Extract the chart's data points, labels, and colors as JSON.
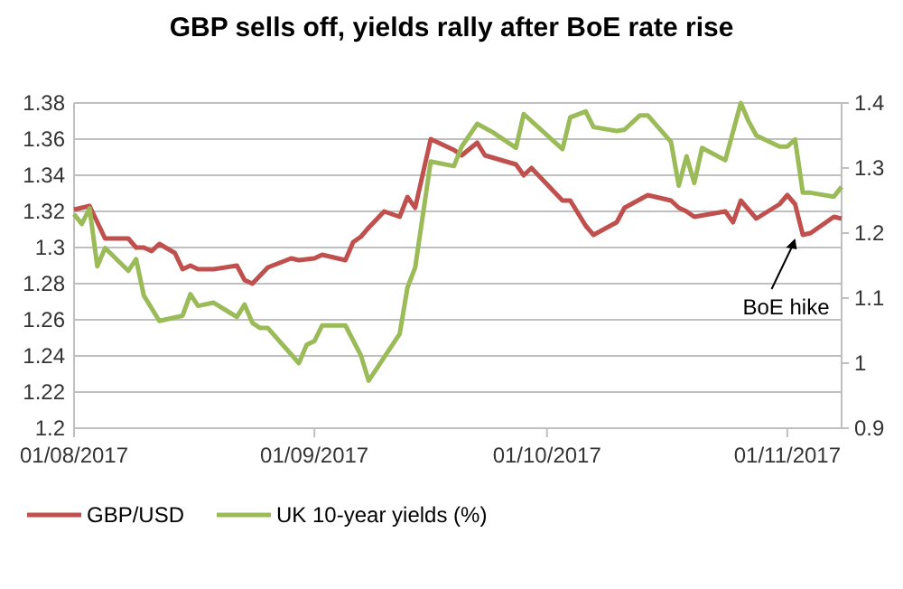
{
  "chart_data": {
    "type": "line",
    "title": "GBP sells off, yields rally after BoE rate rise",
    "xlim": [
      "2017-08-01",
      "2017-11-08"
    ],
    "xticks": [
      {
        "value": "2017-08-01",
        "label": "01/08/2017"
      },
      {
        "value": "2017-09-01",
        "label": "01/09/2017"
      },
      {
        "value": "2017-10-01",
        "label": "01/10/2017"
      },
      {
        "value": "2017-11-01",
        "label": "01/11/2017"
      }
    ],
    "ylim": [
      1.2,
      1.38
    ],
    "yticks": [
      1.2,
      1.22,
      1.24,
      1.26,
      1.28,
      1.3,
      1.32,
      1.34,
      1.36,
      1.38
    ],
    "y2lim": [
      0.9,
      1.4
    ],
    "y2ticks": [
      0.9,
      1,
      1.1,
      1.2,
      1.3,
      1.4
    ],
    "grid": "y",
    "legend": "bottom",
    "marker": "none",
    "line_style": "solid",
    "annotations": [
      {
        "text": "BoE hike",
        "x": "2017-11-02",
        "y": 1.307
      }
    ],
    "series": [
      {
        "name": "GBP/USD",
        "color": "#c0504d",
        "x": [
          "2017-08-01",
          "2017-08-03",
          "2017-08-05",
          "2017-08-08",
          "2017-08-09",
          "2017-08-10",
          "2017-08-11",
          "2017-08-12",
          "2017-08-14",
          "2017-08-15",
          "2017-08-16",
          "2017-08-17",
          "2017-08-19",
          "2017-08-22",
          "2017-08-23",
          "2017-08-24",
          "2017-08-26",
          "2017-08-29",
          "2017-08-30",
          "2017-09-01",
          "2017-09-02",
          "2017-09-05",
          "2017-09-06",
          "2017-09-07",
          "2017-09-08",
          "2017-09-10",
          "2017-09-12",
          "2017-09-13",
          "2017-09-14",
          "2017-09-16",
          "2017-09-19",
          "2017-09-20",
          "2017-09-22",
          "2017-09-23",
          "2017-09-27",
          "2017-09-28",
          "2017-09-29",
          "2017-10-03",
          "2017-10-04",
          "2017-10-06",
          "2017-10-07",
          "2017-10-10",
          "2017-10-11",
          "2017-10-14",
          "2017-10-17",
          "2017-10-18",
          "2017-10-19",
          "2017-10-20",
          "2017-10-24",
          "2017-10-25",
          "2017-10-26",
          "2017-10-28",
          "2017-10-31",
          "2017-11-01",
          "2017-11-02",
          "2017-11-03",
          "2017-11-04",
          "2017-11-07",
          "2017-11-08"
        ],
        "values": [
          1.321,
          1.323,
          1.305,
          1.305,
          1.3,
          1.3,
          1.298,
          1.302,
          1.297,
          1.288,
          1.29,
          1.288,
          1.288,
          1.29,
          1.282,
          1.28,
          1.289,
          1.294,
          1.293,
          1.294,
          1.296,
          1.293,
          1.303,
          1.306,
          1.311,
          1.32,
          1.317,
          1.328,
          1.322,
          1.36,
          1.354,
          1.351,
          1.358,
          1.351,
          1.346,
          1.34,
          1.344,
          1.326,
          1.326,
          1.312,
          1.307,
          1.314,
          1.322,
          1.329,
          1.326,
          1.322,
          1.32,
          1.317,
          1.32,
          1.314,
          1.326,
          1.316,
          1.324,
          1.329,
          1.324,
          1.307,
          1.308,
          1.317,
          1.316
        ]
      },
      {
        "name": "UK 10-year yields (%)",
        "color": "#9bbb59",
        "axis": "y2",
        "x": [
          "2017-08-01",
          "2017-08-02",
          "2017-08-03",
          "2017-08-04",
          "2017-08-05",
          "2017-08-08",
          "2017-08-09",
          "2017-08-10",
          "2017-08-12",
          "2017-08-15",
          "2017-08-16",
          "2017-08-17",
          "2017-08-19",
          "2017-08-22",
          "2017-08-23",
          "2017-08-24",
          "2017-08-25",
          "2017-08-26",
          "2017-08-30",
          "2017-08-31",
          "2017-09-01",
          "2017-09-02",
          "2017-09-05",
          "2017-09-07",
          "2017-09-08",
          "2017-09-12",
          "2017-09-13",
          "2017-09-14",
          "2017-09-16",
          "2017-09-19",
          "2017-09-20",
          "2017-09-22",
          "2017-09-24",
          "2017-09-27",
          "2017-09-28",
          "2017-10-03",
          "2017-10-04",
          "2017-10-06",
          "2017-10-07",
          "2017-10-10",
          "2017-10-11",
          "2017-10-13",
          "2017-10-14",
          "2017-10-17",
          "2017-10-18",
          "2017-10-19",
          "2017-10-20",
          "2017-10-21",
          "2017-10-24",
          "2017-10-26",
          "2017-10-27",
          "2017-10-28",
          "2017-10-31",
          "2017-11-01",
          "2017-11-02",
          "2017-11-03",
          "2017-11-04",
          "2017-11-07",
          "2017-11-08"
        ],
        "values": [
          1.229,
          1.214,
          1.238,
          1.149,
          1.177,
          1.142,
          1.16,
          1.104,
          1.065,
          1.073,
          1.106,
          1.088,
          1.093,
          1.071,
          1.09,
          1.062,
          1.054,
          1.054,
          1.0,
          1.028,
          1.034,
          1.058,
          1.058,
          1.012,
          0.973,
          1.045,
          1.116,
          1.147,
          1.31,
          1.303,
          1.333,
          1.368,
          1.355,
          1.331,
          1.383,
          1.329,
          1.378,
          1.387,
          1.363,
          1.357,
          1.359,
          1.381,
          1.381,
          1.34,
          1.273,
          1.318,
          1.277,
          1.331,
          1.312,
          1.4,
          1.372,
          1.35,
          1.333,
          1.333,
          1.344,
          1.262,
          1.262,
          1.256,
          1.271
        ]
      }
    ]
  }
}
